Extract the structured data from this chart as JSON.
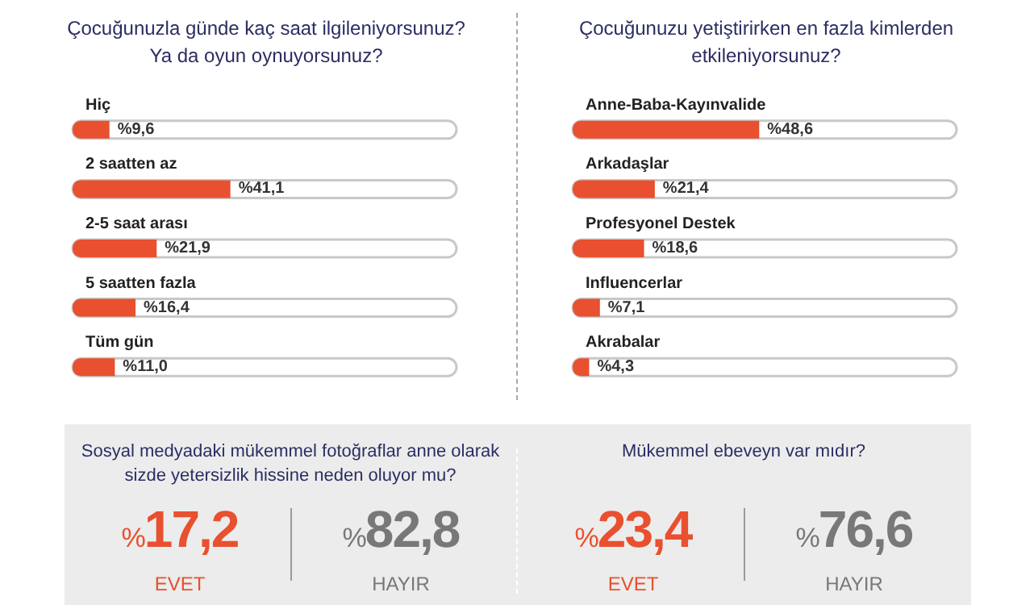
{
  "chart_data": [
    {
      "type": "bar",
      "orientation": "horizontal",
      "title": "Çocuğunuzla günde kaç saat ilgileniyorsunuz?\nYa da oyun oynuyorsunuz?",
      "categories": [
        "Hiç",
        "2 saatten az",
        "2-5 saat arası",
        "5 saatten fazla",
        "Tüm gün"
      ],
      "values": [
        9.6,
        41.1,
        21.9,
        16.4,
        11.0
      ],
      "value_labels": [
        "%9,6",
        "%41,1",
        "%21,9",
        "%16,4",
        "%11,0"
      ],
      "color": "#e8502f",
      "xlim": [
        0,
        100
      ],
      "tick_labels": "y"
    },
    {
      "type": "bar",
      "orientation": "horizontal",
      "title": "Çocuğunuzu yetiştirirken en fazla kimlerden\netkileniyorsunuz?",
      "categories": [
        "Anne-Baba-Kayınvalide",
        "Arkadaşlar",
        "Profesyonel Destek",
        "Influencerlar",
        "Akrabalar"
      ],
      "values": [
        48.6,
        21.4,
        18.6,
        7.1,
        4.3
      ],
      "value_labels": [
        "%48,6",
        "%21,4",
        "%18,6",
        "%7,1",
        "%4,3"
      ],
      "color": "#e8502f",
      "xlim": [
        0,
        100
      ],
      "tick_labels": "y"
    },
    {
      "type": "other",
      "title": "Sosyal medyadaki mükemmel fotoğraflar anne olarak\nsizde yetersizlik hissine neden oluyor mu?",
      "categories": [
        "EVET",
        "HAYIR"
      ],
      "values": [
        17.2,
        82.8
      ],
      "value_labels": [
        "%17,2",
        "%82,8"
      ],
      "colors": [
        "#e8502f",
        "#787878"
      ]
    },
    {
      "type": "other",
      "title": "Mükemmel ebeveyn var mıdır?",
      "categories": [
        "EVET",
        "HAYIR"
      ],
      "values": [
        23.4,
        76.6
      ],
      "value_labels": [
        "%23,4",
        "%76,6"
      ],
      "colors": [
        "#e8502f",
        "#787878"
      ]
    }
  ]
}
